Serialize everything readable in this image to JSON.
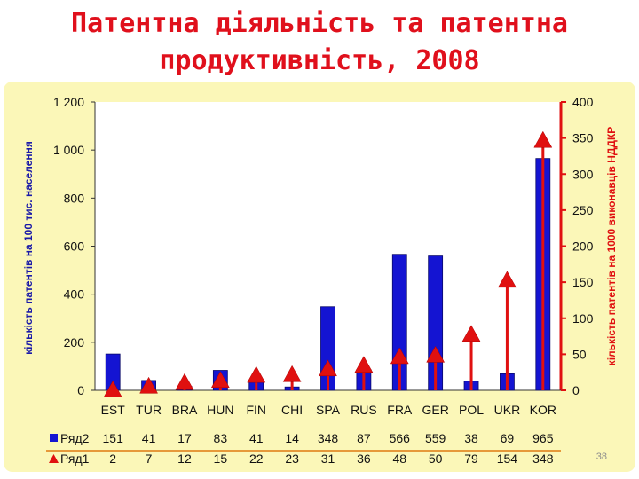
{
  "title": {
    "line1": "Патентна діяльність та патентна",
    "line2": "продуктивність, 2008"
  },
  "slide_number": "38",
  "colors": {
    "title": "#e0101c",
    "background": "#fbf7b8",
    "bar": "#1414d2",
    "line_marker": "#e01010",
    "axis_right": "#e01010",
    "text_left_axis": "#1a1aa8"
  },
  "chart_data": {
    "type": "bar",
    "categories": [
      "EST",
      "TUR",
      "BRA",
      "HUN",
      "FIN",
      "CHI",
      "SPA",
      "RUS",
      "FRA",
      "GER",
      "POL",
      "UKR",
      "KOR"
    ],
    "series": [
      {
        "name": "Ряд2",
        "axis": "left",
        "render": "bar",
        "values": [
          151,
          41,
          17,
          83,
          41,
          14,
          348,
          87,
          566,
          559,
          38,
          69,
          965
        ]
      },
      {
        "name": "Ряд1",
        "axis": "right",
        "render": "drop-line-triangle",
        "values": [
          2,
          7,
          12,
          15,
          22,
          23,
          31,
          36,
          48,
          50,
          79,
          154,
          348
        ]
      }
    ],
    "y_left": {
      "label": "кількість патентів на 100 тис. населення",
      "range": [
        0,
        1200
      ],
      "ticks": [
        "0",
        "200",
        "400",
        "600",
        "800",
        "1 000",
        "1 200"
      ]
    },
    "y_right": {
      "label": "кількість патентів на 1000 виконавців НДДКР",
      "range": [
        0,
        400
      ],
      "ticks": [
        "0",
        "50",
        "100",
        "150",
        "200",
        "250",
        "300",
        "350",
        "400"
      ]
    },
    "legend": "data-table-below",
    "grid": false
  }
}
